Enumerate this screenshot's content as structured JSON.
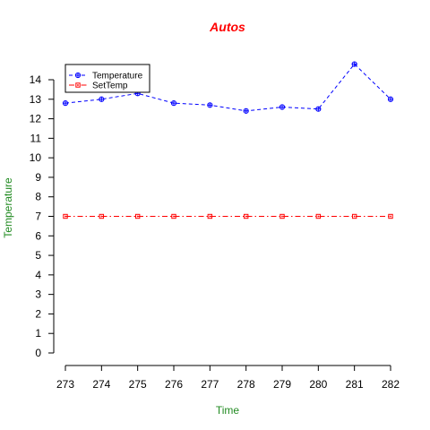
{
  "chart_data": {
    "type": "line",
    "title": "Autos",
    "xlabel": "Time",
    "ylabel": "Temperature",
    "x": [
      273,
      274,
      275,
      276,
      277,
      278,
      279,
      280,
      281,
      282
    ],
    "xlim": [
      273,
      282
    ],
    "ylim": [
      0,
      14
    ],
    "xticks": [
      "273",
      "274",
      "275",
      "276",
      "277",
      "278",
      "279",
      "280",
      "281",
      "282"
    ],
    "yticks": [
      "0",
      "1",
      "2",
      "3",
      "4",
      "5",
      "6",
      "7",
      "8",
      "9",
      "10",
      "11",
      "12",
      "13",
      "14"
    ],
    "grid": false,
    "legend_position": "top-left",
    "series": [
      {
        "name": "Temperature",
        "color": "#0000ff",
        "line_style": "dashed",
        "marker": "circle-plus",
        "values": [
          12.8,
          13.0,
          13.3,
          12.8,
          12.7,
          12.4,
          12.6,
          12.5,
          14.8,
          13.0
        ]
      },
      {
        "name": "SetTemp",
        "color": "#ff0000",
        "line_style": "dash-dot",
        "marker": "square-dot",
        "values": [
          7,
          7,
          7,
          7,
          7,
          7,
          7,
          7,
          7,
          7
        ]
      }
    ],
    "colors": {
      "title": "#ff0000",
      "axis_title": "#228b22"
    }
  }
}
